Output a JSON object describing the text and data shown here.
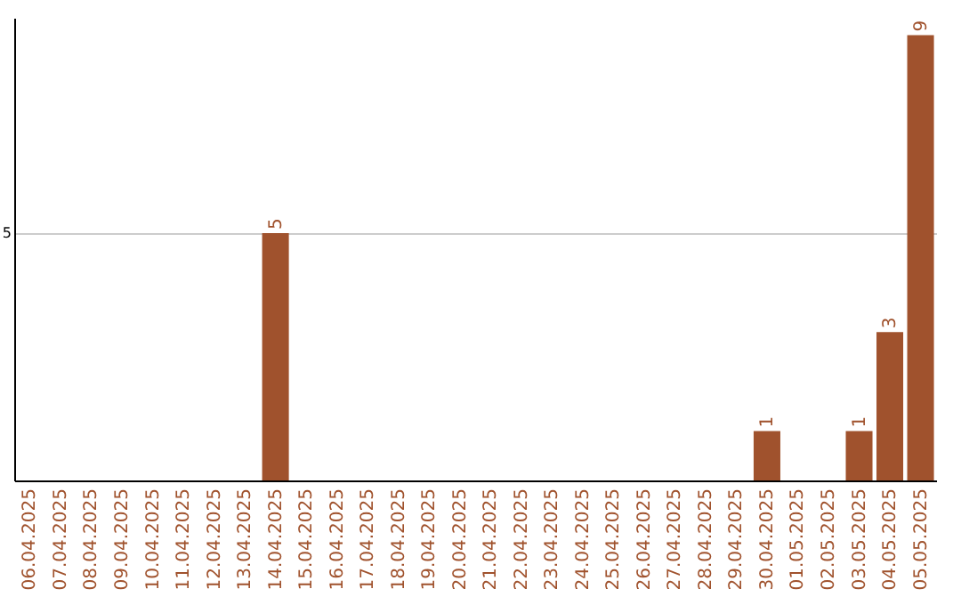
{
  "chart_data": {
    "type": "bar",
    "categories": [
      "06.04.2025",
      "07.04.2025",
      "08.04.2025",
      "09.04.2025",
      "10.04.2025",
      "11.04.2025",
      "12.04.2025",
      "13.04.2025",
      "14.04.2025",
      "15.04.2025",
      "16.04.2025",
      "17.04.2025",
      "18.04.2025",
      "19.04.2025",
      "20.04.2025",
      "21.04.2025",
      "22.04.2025",
      "23.04.2025",
      "24.04.2025",
      "25.04.2025",
      "26.04.2025",
      "27.04.2025",
      "28.04.2025",
      "29.04.2025",
      "30.04.2025",
      "01.05.2025",
      "02.05.2025",
      "03.05.2025",
      "04.05.2025",
      "05.05.2025"
    ],
    "values": [
      0,
      0,
      0,
      0,
      0,
      0,
      0,
      0,
      5,
      0,
      0,
      0,
      0,
      0,
      0,
      0,
      0,
      0,
      0,
      0,
      0,
      0,
      0,
      0,
      1,
      0,
      0,
      1,
      3,
      9
    ],
    "value_labels": [
      null,
      null,
      null,
      null,
      null,
      null,
      null,
      null,
      "5",
      null,
      null,
      null,
      null,
      null,
      null,
      null,
      null,
      null,
      null,
      null,
      null,
      null,
      null,
      null,
      "1",
      null,
      null,
      "1",
      "3",
      "9"
    ],
    "color": "#a0522d",
    "ylim": [
      0,
      9.35
    ],
    "yticks": [
      5
    ],
    "grid": "y"
  }
}
